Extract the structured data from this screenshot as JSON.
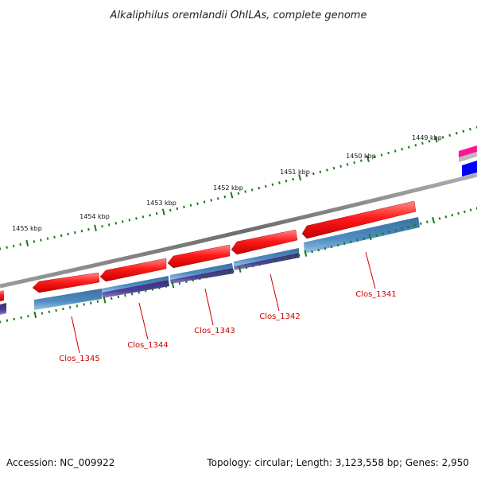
{
  "title": "Alkaliphilus oremlandii OhILAs, complete genome",
  "footer": {
    "accession": "Accession: NC_009922",
    "summary": "Topology: circular; Length: 3,123,558 bp; Genes: 2,950"
  },
  "scale": {
    "ticks": [
      "1455 kbp",
      "1454 kbp",
      "1453 kbp",
      "1452 kbp",
      "1451 kbp",
      "1450 kbp",
      "1449 kbp"
    ]
  },
  "genes": [
    {
      "name": "Clos_1345"
    },
    {
      "name": "Clos_1344"
    },
    {
      "name": "Clos_1343"
    },
    {
      "name": "Clos_1342"
    },
    {
      "name": "Clos_1341"
    }
  ],
  "colors": {
    "gene_red": "#ff1a1a",
    "cog_blue": "#4682b4",
    "cog_purple": "#483d8b",
    "backbone": "#808080",
    "tick_green": "#1a7a1a",
    "label_red": "#cc0000",
    "edge_pink": "#ff1493",
    "edge_blue": "#0000ff"
  }
}
